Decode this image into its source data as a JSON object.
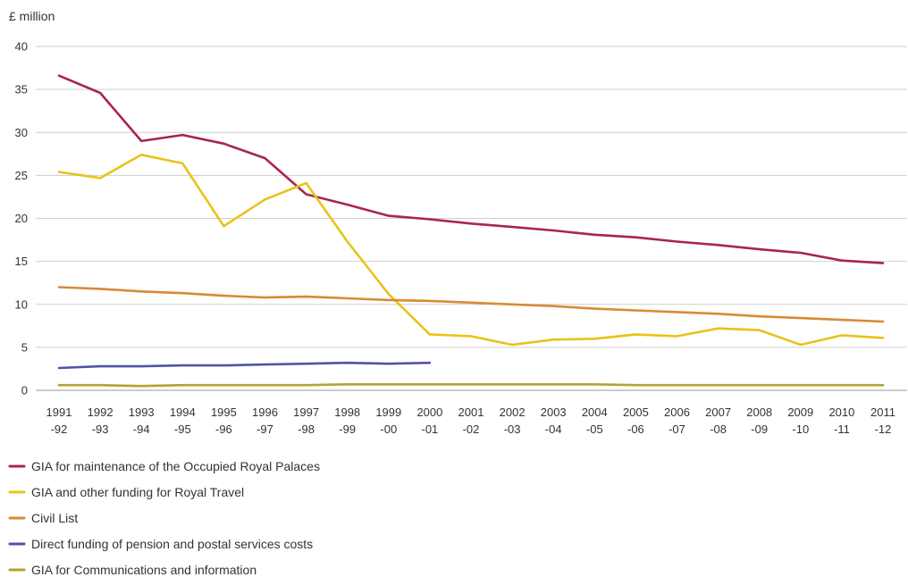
{
  "chart_data": {
    "type": "line",
    "ylabel": "£ million",
    "ylim": [
      0,
      40
    ],
    "yticks": [
      "0",
      "5",
      "10",
      "15",
      "20",
      "25",
      "30",
      "35",
      "40"
    ],
    "categories": [
      [
        "1991",
        "-92"
      ],
      [
        "1992",
        "-93"
      ],
      [
        "1993",
        "-94"
      ],
      [
        "1994",
        "-95"
      ],
      [
        "1995",
        "-96"
      ],
      [
        "1996",
        "-97"
      ],
      [
        "1997",
        "-98"
      ],
      [
        "1998",
        "-99"
      ],
      [
        "1999",
        "-00"
      ],
      [
        "2000",
        "-01"
      ],
      [
        "2001",
        "-02"
      ],
      [
        "2002",
        "-03"
      ],
      [
        "2003",
        "-04"
      ],
      [
        "2004",
        "-05"
      ],
      [
        "2005",
        "-06"
      ],
      [
        "2006",
        "-07"
      ],
      [
        "2007",
        "-08"
      ],
      [
        "2008",
        "-09"
      ],
      [
        "2009",
        "-10"
      ],
      [
        "2010",
        "-11"
      ],
      [
        "2011",
        "-12"
      ]
    ],
    "grid": "horizontal",
    "legend_position": "bottom-left",
    "series": [
      {
        "name": "GIA for maintenance of the Occupied Royal Palaces",
        "color": "#a8254e",
        "values": [
          36.6,
          34.6,
          29.0,
          29.7,
          28.7,
          27.0,
          22.8,
          21.6,
          20.3,
          19.9,
          19.4,
          19.0,
          18.6,
          18.1,
          17.8,
          17.3,
          16.9,
          16.4,
          16.0,
          15.1,
          14.8
        ]
      },
      {
        "name": "GIA and other funding for Royal Travel",
        "color": "#e8c319",
        "values": [
          25.4,
          24.7,
          27.4,
          26.4,
          19.1,
          22.2,
          24.1,
          17.3,
          11.2,
          6.5,
          6.3,
          5.3,
          5.9,
          6.0,
          6.5,
          6.3,
          7.2,
          7.0,
          5.3,
          6.4,
          6.1
        ]
      },
      {
        "name": "Civil List",
        "color": "#d98a37",
        "values": [
          12.0,
          11.8,
          11.5,
          11.3,
          11.0,
          10.8,
          10.9,
          10.7,
          10.5,
          10.4,
          10.2,
          10.0,
          9.8,
          9.5,
          9.3,
          9.1,
          8.9,
          8.6,
          8.4,
          8.2,
          8.0
        ]
      },
      {
        "name": "Direct funding of pension and postal services costs",
        "color": "#5052a7",
        "values": [
          2.6,
          2.8,
          2.8,
          2.9,
          2.9,
          3.0,
          3.1,
          3.2,
          3.1,
          3.2,
          null,
          null,
          null,
          null,
          null,
          null,
          null,
          null,
          null,
          null,
          null
        ]
      },
      {
        "name": "GIA for Communications and information",
        "color": "#b5a234",
        "values": [
          0.6,
          0.6,
          0.5,
          0.6,
          0.6,
          0.6,
          0.6,
          0.7,
          0.7,
          0.7,
          0.7,
          0.7,
          0.7,
          0.7,
          0.6,
          0.6,
          0.6,
          0.6,
          0.6,
          0.6,
          0.6
        ]
      }
    ]
  }
}
